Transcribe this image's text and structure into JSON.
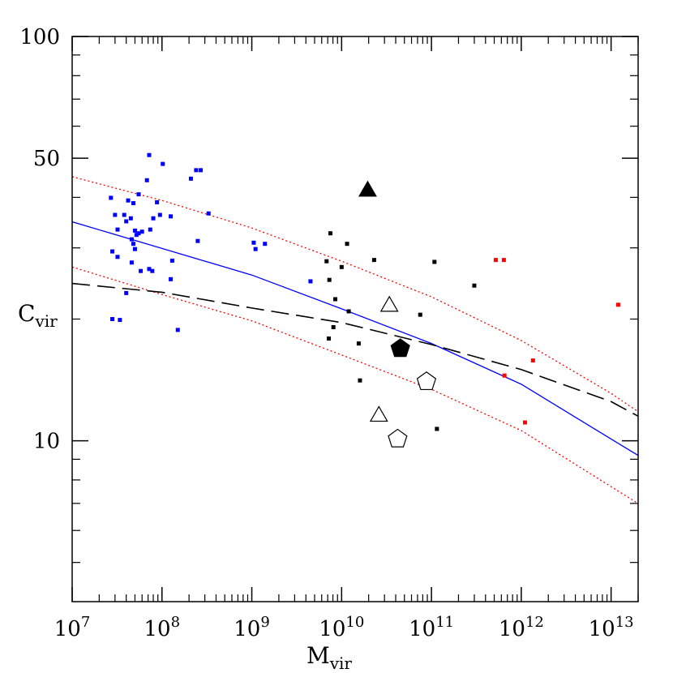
{
  "chart_data": {
    "type": "scatter",
    "xlabel": {
      "main": "M",
      "sub": "vir"
    },
    "ylabel": {
      "main": "C",
      "sub": "vir"
    },
    "x_scale": "log",
    "y_scale": "log",
    "xlim": [
      10000000,
      20000000000000
    ],
    "ylim": [
      4,
      100
    ],
    "grid": false,
    "x_ticks": [
      {
        "value": 10000000,
        "base": "10",
        "exp": "7"
      },
      {
        "value": 100000000,
        "base": "10",
        "exp": "8"
      },
      {
        "value": 1000000000,
        "base": "10",
        "exp": "9"
      },
      {
        "value": 10000000000,
        "base": "10",
        "exp": "10"
      },
      {
        "value": 100000000000,
        "base": "10",
        "exp": "11"
      },
      {
        "value": 1000000000000,
        "base": "10",
        "exp": "12"
      },
      {
        "value": 10000000000000,
        "base": "10",
        "exp": "13"
      }
    ],
    "y_ticks": [
      {
        "value": 10,
        "label": "10"
      },
      {
        "value": 50,
        "label": "50"
      },
      {
        "value": 100,
        "label": "100"
      }
    ],
    "series": [
      {
        "marker": "square",
        "color": "#0000ff",
        "points": [
          [
            27000000,
            39.9
          ],
          [
            30000000,
            36.2
          ],
          [
            32000000,
            33.3
          ],
          [
            28000000,
            29.4
          ],
          [
            32000000,
            28.5
          ],
          [
            38000000,
            36.2
          ],
          [
            40000000,
            34.9
          ],
          [
            42000000,
            39.3
          ],
          [
            48000000,
            38.7
          ],
          [
            45000000,
            35.5
          ],
          [
            50000000,
            33.1
          ],
          [
            52000000,
            32.3
          ],
          [
            55000000,
            32.6
          ],
          [
            48000000,
            30.7
          ],
          [
            60000000,
            32.9
          ],
          [
            46000000,
            31.5
          ],
          [
            50000000,
            29.8
          ],
          [
            46000000,
            27.6
          ],
          [
            58000000,
            26.3
          ],
          [
            72000000,
            26.6
          ],
          [
            78000000,
            26.3
          ],
          [
            40000000,
            23.2
          ],
          [
            28000000,
            20.0
          ],
          [
            34000000,
            19.9
          ],
          [
            72000000,
            50.9
          ],
          [
            68000000,
            44.1
          ],
          [
            55000000,
            40.7
          ],
          [
            88000000,
            38.9
          ],
          [
            102000000,
            48.4
          ],
          [
            125000000,
            35.9
          ],
          [
            95000000,
            36.2
          ],
          [
            80000000,
            35.5
          ],
          [
            74000000,
            33.3
          ],
          [
            130000000,
            27.9
          ],
          [
            125000000,
            25.1
          ],
          [
            150000000,
            18.8
          ],
          [
            210000000,
            44.5
          ],
          [
            240000000,
            46.7
          ],
          [
            270000000,
            46.7
          ],
          [
            330000000,
            36.5
          ],
          [
            250000000,
            31.2
          ],
          [
            1050000000,
            30.9
          ],
          [
            1100000000,
            29.8
          ],
          [
            1400000000,
            30.7
          ],
          [
            4500000000,
            24.8
          ]
        ]
      },
      {
        "marker": "square",
        "color": "#000000",
        "points": [
          [
            7500000000,
            32.6
          ],
          [
            11500000000,
            30.7
          ],
          [
            23000000000,
            28.0
          ],
          [
            6800000000,
            27.8
          ],
          [
            10000000000,
            26.9
          ],
          [
            7300000000,
            25.0
          ],
          [
            8500000000,
            22.4
          ],
          [
            12000000000,
            20.9
          ],
          [
            8100000000,
            19.1
          ],
          [
            7200000000,
            17.9
          ],
          [
            15500000000,
            17.4
          ],
          [
            16000000000,
            14.1
          ],
          [
            75000000000,
            20.5
          ],
          [
            108000000000,
            27.7
          ],
          [
            300000000000,
            24.2
          ],
          [
            115000000000,
            10.7
          ]
        ]
      },
      {
        "marker": "square",
        "color": "#ff0000",
        "points": [
          [
            520000000000,
            28.0
          ],
          [
            640000000000,
            28.0
          ],
          [
            1100000000000,
            11.1
          ],
          [
            650000000000,
            14.5
          ],
          [
            1350000000000,
            15.8
          ],
          [
            12000000000000,
            21.7
          ]
        ]
      },
      {
        "marker": "triangle",
        "color": "#000000",
        "filled": true,
        "points": [
          [
            19500000000,
            41.8
          ]
        ]
      },
      {
        "marker": "triangle",
        "color": "#000000",
        "filled": false,
        "points": [
          [
            34000000000,
            21.7
          ],
          [
            26000000000,
            11.6
          ]
        ]
      },
      {
        "marker": "pentagon",
        "color": "#000000",
        "filled": true,
        "points": [
          [
            45000000000,
            16.9
          ]
        ]
      },
      {
        "marker": "pentagon",
        "color": "#000000",
        "filled": false,
        "points": [
          [
            88000000000,
            14.0
          ],
          [
            42000000000,
            10.1
          ]
        ]
      }
    ],
    "lines": [
      {
        "style": "solid",
        "color": "#0000ff",
        "points": [
          [
            10000000,
            34.8
          ],
          [
            100000000,
            29.9
          ],
          [
            1000000000,
            25.7
          ],
          [
            10000000000,
            21.2
          ],
          [
            100000000000,
            17.4
          ],
          [
            1000000000000,
            13.8
          ],
          [
            10000000000000,
            10.1
          ],
          [
            20000000000000,
            9.2
          ]
        ]
      },
      {
        "style": "dotted",
        "color": "#ff0000",
        "points": [
          [
            10000000,
            45.0
          ],
          [
            100000000,
            39.3
          ],
          [
            1000000000,
            33.6
          ],
          [
            10000000000,
            27.8
          ],
          [
            100000000000,
            22.7
          ],
          [
            1000000000000,
            17.7
          ],
          [
            10000000000000,
            13.1
          ],
          [
            20000000000000,
            11.8
          ]
        ]
      },
      {
        "style": "dotted",
        "color": "#ff0000",
        "points": [
          [
            10000000,
            26.9
          ],
          [
            100000000,
            23.0
          ],
          [
            1000000000,
            19.8
          ],
          [
            10000000000,
            16.3
          ],
          [
            100000000000,
            13.4
          ],
          [
            1000000000000,
            10.6
          ],
          [
            10000000000000,
            7.7
          ],
          [
            20000000000000,
            7.0
          ]
        ]
      },
      {
        "style": "dashed",
        "color": "#000000",
        "points": [
          [
            10000000,
            24.5
          ],
          [
            100000000,
            23.3
          ],
          [
            1000000000,
            21.3
          ],
          [
            10000000000,
            19.6
          ],
          [
            100000000000,
            17.3
          ],
          [
            1000000000000,
            15.0
          ],
          [
            10000000000000,
            12.5
          ],
          [
            20000000000000,
            11.5
          ]
        ]
      }
    ]
  }
}
